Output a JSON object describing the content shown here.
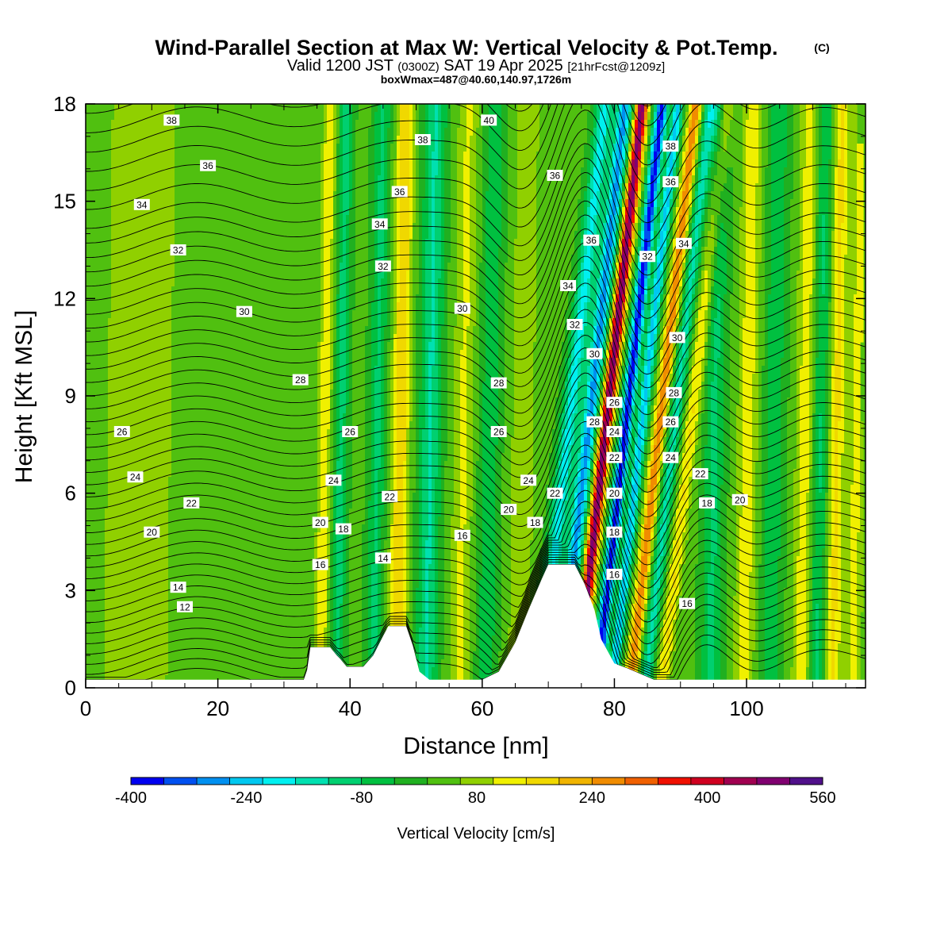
{
  "chart_data": {
    "type": "heatmap",
    "title": "Wind-Parallel Section at Max W: Vertical Velocity & Pot.Temp.",
    "title_mark": "(C)",
    "subtitle_parts": [
      "Valid 1200 JST",
      "(0300Z)",
      "SAT 19 Apr 2025",
      "[21hrFcst@1209z]"
    ],
    "subtitle2": "boxWmax=487@40.60,140.97,1726m",
    "xlabel": "Distance [nm]",
    "ylabel": "Height [Kft MSL]",
    "xlim": [
      0,
      118
    ],
    "ylim": [
      0,
      18
    ],
    "xticks": [
      "0",
      "20",
      "40",
      "60",
      "80",
      "100"
    ],
    "yticks": [
      "0",
      "3",
      "6",
      "9",
      "12",
      "15",
      "18"
    ],
    "colorbar": {
      "label": "Vertical Velocity [cm/s]",
      "range": [
        -400,
        560
      ],
      "tick_labels": [
        "-400",
        "-240",
        "-80",
        "80",
        "240",
        "400",
        "560"
      ],
      "colors": [
        "#0000f0",
        "#0050f0",
        "#0090f0",
        "#00c8f0",
        "#00f0f0",
        "#00e0b0",
        "#00d070",
        "#00c040",
        "#20b020",
        "#50c010",
        "#90d000",
        "#f0f000",
        "#f0d800",
        "#f0b400",
        "#f08c00",
        "#f06000",
        "#f01000",
        "#d00020",
        "#a00050",
        "#800070",
        "#50108a"
      ]
    },
    "velocity_bands": [
      {
        "x": 6,
        "w": 4,
        "v": 60
      },
      {
        "x": 11,
        "w": 4,
        "v": 40
      },
      {
        "x": 36,
        "w": 1,
        "v": 120
      },
      {
        "x": 38.5,
        "w": 1,
        "v": -120
      },
      {
        "x": 44,
        "w": 1.2,
        "v": -110
      },
      {
        "x": 47.5,
        "w": 1.3,
        "v": 170
      },
      {
        "x": 52,
        "w": 1.6,
        "v": -150
      },
      {
        "x": 57,
        "w": 1.6,
        "v": 90
      },
      {
        "x": 61,
        "w": 1.5,
        "v": -90
      },
      {
        "x": 66,
        "w": 1.8,
        "v": 80
      },
      {
        "x": 72,
        "w": 1.3,
        "v": -210
      },
      {
        "x": 75,
        "w": 1.1,
        "v": -300
      },
      {
        "x": 77.6,
        "w": 0.9,
        "v": 480
      },
      {
        "x": 80.6,
        "w": 0.9,
        "v": -400
      },
      {
        "x": 83,
        "w": 0.8,
        "v": -260
      },
      {
        "x": 85.7,
        "w": 0.9,
        "v": 260
      },
      {
        "x": 88,
        "w": 1,
        "v": -160
      },
      {
        "x": 90.5,
        "w": 1.1,
        "v": 130
      },
      {
        "x": 95,
        "w": 1.5,
        "v": -110
      },
      {
        "x": 100,
        "w": 1.5,
        "v": 110
      },
      {
        "x": 104,
        "w": 1.5,
        "v": -90
      },
      {
        "x": 108.7,
        "w": 1.4,
        "v": 110
      },
      {
        "x": 111,
        "w": 1.2,
        "v": -110
      },
      {
        "x": 113.5,
        "w": 1.2,
        "v": 140
      },
      {
        "x": 116.5,
        "w": 1.2,
        "v": 100
      }
    ],
    "terrain": [
      [
        0,
        0.25
      ],
      [
        33,
        0.25
      ],
      [
        33.5,
        0.55
      ],
      [
        34,
        1.25
      ],
      [
        37,
        1.25
      ],
      [
        38,
        1
      ],
      [
        38.5,
        0.9
      ],
      [
        39.5,
        0.65
      ],
      [
        42,
        0.65
      ],
      [
        43.5,
        1
      ],
      [
        45,
        1.6
      ],
      [
        45.8,
        1.9
      ],
      [
        48.5,
        1.9
      ],
      [
        49.5,
        1.3
      ],
      [
        50.5,
        0.5
      ],
      [
        52,
        0.25
      ],
      [
        60,
        0.25
      ],
      [
        62.5,
        0.5
      ],
      [
        65,
        1.4
      ],
      [
        67,
        2.4
      ],
      [
        69,
        3.35
      ],
      [
        70,
        3.8
      ],
      [
        74,
        3.8
      ],
      [
        75.5,
        3.2
      ],
      [
        77,
        2.4
      ],
      [
        78,
        1.5
      ],
      [
        80,
        0.75
      ],
      [
        82,
        0.6
      ],
      [
        86,
        0.25
      ],
      [
        118,
        0.25
      ]
    ],
    "theta_levels": [
      12,
      14,
      16,
      18,
      20,
      22,
      24,
      26,
      28,
      30,
      32,
      34,
      36,
      38,
      40
    ],
    "theta_labels": [
      {
        "text": "38",
        "x": 13,
        "y": 17.5
      },
      {
        "text": "36",
        "x": 18.5,
        "y": 16.1
      },
      {
        "text": "34",
        "x": 8.5,
        "y": 14.9
      },
      {
        "text": "32",
        "x": 14,
        "y": 13.5
      },
      {
        "text": "30",
        "x": 24,
        "y": 11.6
      },
      {
        "text": "28",
        "x": 32.5,
        "y": 9.5
      },
      {
        "text": "26",
        "x": 5.5,
        "y": 7.9
      },
      {
        "text": "24",
        "x": 7.5,
        "y": 6.5
      },
      {
        "text": "22",
        "x": 16,
        "y": 5.7
      },
      {
        "text": "20",
        "x": 10,
        "y": 4.8
      },
      {
        "text": "14",
        "x": 14,
        "y": 3.1
      },
      {
        "text": "12",
        "x": 15,
        "y": 2.5
      },
      {
        "text": "40",
        "x": 61,
        "y": 17.5
      },
      {
        "text": "38",
        "x": 51,
        "y": 16.9
      },
      {
        "text": "36",
        "x": 47.5,
        "y": 15.3
      },
      {
        "text": "34",
        "x": 44.5,
        "y": 14.3
      },
      {
        "text": "32",
        "x": 45,
        "y": 13
      },
      {
        "text": "30",
        "x": 57,
        "y": 11.7
      },
      {
        "text": "28",
        "x": 62.5,
        "y": 9.4
      },
      {
        "text": "26",
        "x": 40,
        "y": 7.9
      },
      {
        "text": "26",
        "x": 62.5,
        "y": 7.9
      },
      {
        "text": "24",
        "x": 37.5,
        "y": 6.4
      },
      {
        "text": "24",
        "x": 67,
        "y": 6.4
      },
      {
        "text": "22",
        "x": 46,
        "y": 5.9
      },
      {
        "text": "22",
        "x": 71,
        "y": 6
      },
      {
        "text": "20",
        "x": 35.5,
        "y": 5.1
      },
      {
        "text": "20",
        "x": 64,
        "y": 5.5
      },
      {
        "text": "18",
        "x": 39,
        "y": 4.9
      },
      {
        "text": "18",
        "x": 68,
        "y": 5.1
      },
      {
        "text": "16",
        "x": 35.5,
        "y": 3.8
      },
      {
        "text": "16",
        "x": 57,
        "y": 4.7
      },
      {
        "text": "14",
        "x": 45,
        "y": 4
      },
      {
        "text": "36",
        "x": 71,
        "y": 15.8
      },
      {
        "text": "36",
        "x": 76.5,
        "y": 13.8
      },
      {
        "text": "34",
        "x": 73,
        "y": 12.4
      },
      {
        "text": "32",
        "x": 74,
        "y": 11.2
      },
      {
        "text": "30",
        "x": 77,
        "y": 10.3
      },
      {
        "text": "28",
        "x": 77,
        "y": 8.2
      },
      {
        "text": "26",
        "x": 80,
        "y": 8.8
      },
      {
        "text": "24",
        "x": 80,
        "y": 7.9
      },
      {
        "text": "22",
        "x": 80,
        "y": 7.1
      },
      {
        "text": "20",
        "x": 80,
        "y": 6
      },
      {
        "text": "18",
        "x": 80,
        "y": 4.8
      },
      {
        "text": "16",
        "x": 80,
        "y": 3.5
      },
      {
        "text": "38",
        "x": 88.5,
        "y": 16.7
      },
      {
        "text": "36",
        "x": 88.5,
        "y": 15.6
      },
      {
        "text": "34",
        "x": 90.5,
        "y": 13.7
      },
      {
        "text": "32",
        "x": 85,
        "y": 13.3
      },
      {
        "text": "30",
        "x": 89.5,
        "y": 10.8
      },
      {
        "text": "28",
        "x": 89,
        "y": 9.1
      },
      {
        "text": "26",
        "x": 88.5,
        "y": 8.2
      },
      {
        "text": "24",
        "x": 88.5,
        "y": 7.1
      },
      {
        "text": "22",
        "x": 93,
        "y": 6.6
      },
      {
        "text": "18",
        "x": 94,
        "y": 5.7
      },
      {
        "text": "20",
        "x": 99,
        "y": 5.8
      },
      {
        "text": "16",
        "x": 91,
        "y": 2.6
      }
    ]
  }
}
